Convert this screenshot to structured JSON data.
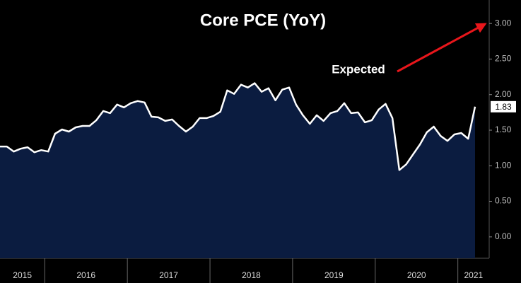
{
  "chart_data": {
    "type": "area",
    "title": "Core PCE (YoY)",
    "annotation": "Expected",
    "x_labels": [
      "2015",
      "2016",
      "2017",
      "2018",
      "2019",
      "2020",
      "2021"
    ],
    "series": [
      {
        "name": "Core PCE",
        "color": "#ffffff",
        "fill": "#0b1c40",
        "values": [
          1.27,
          1.27,
          1.2,
          1.24,
          1.26,
          1.19,
          1.22,
          1.2,
          1.45,
          1.51,
          1.48,
          1.54,
          1.56,
          1.56,
          1.64,
          1.77,
          1.74,
          1.86,
          1.82,
          1.88,
          1.91,
          1.89,
          1.69,
          1.68,
          1.63,
          1.65,
          1.56,
          1.48,
          1.55,
          1.67,
          1.67,
          1.7,
          1.76,
          2.06,
          2.01,
          2.14,
          2.1,
          2.16,
          2.04,
          2.09,
          1.92,
          2.07,
          2.1,
          1.86,
          1.71,
          1.59,
          1.71,
          1.63,
          1.74,
          1.77,
          1.88,
          1.74,
          1.75,
          1.61,
          1.64,
          1.79,
          1.87,
          1.67,
          0.94,
          1.02,
          1.16,
          1.3,
          1.47,
          1.55,
          1.42,
          1.35,
          1.44,
          1.46,
          1.38,
          1.83
        ],
        "last_value_label": "1.83"
      }
    ],
    "ylim": [
      -0.3,
      3.33
    ],
    "yticks": [
      {
        "value": 0,
        "label": "0.00"
      },
      {
        "value": 0.5,
        "label": "0.50"
      },
      {
        "value": 1,
        "label": "1.00"
      },
      {
        "value": 1.5,
        "label": "1.50"
      },
      {
        "value": 2,
        "label": "2.00"
      },
      {
        "value": 2.5,
        "label": "2.50"
      },
      {
        "value": 3,
        "label": "3.00"
      }
    ]
  }
}
